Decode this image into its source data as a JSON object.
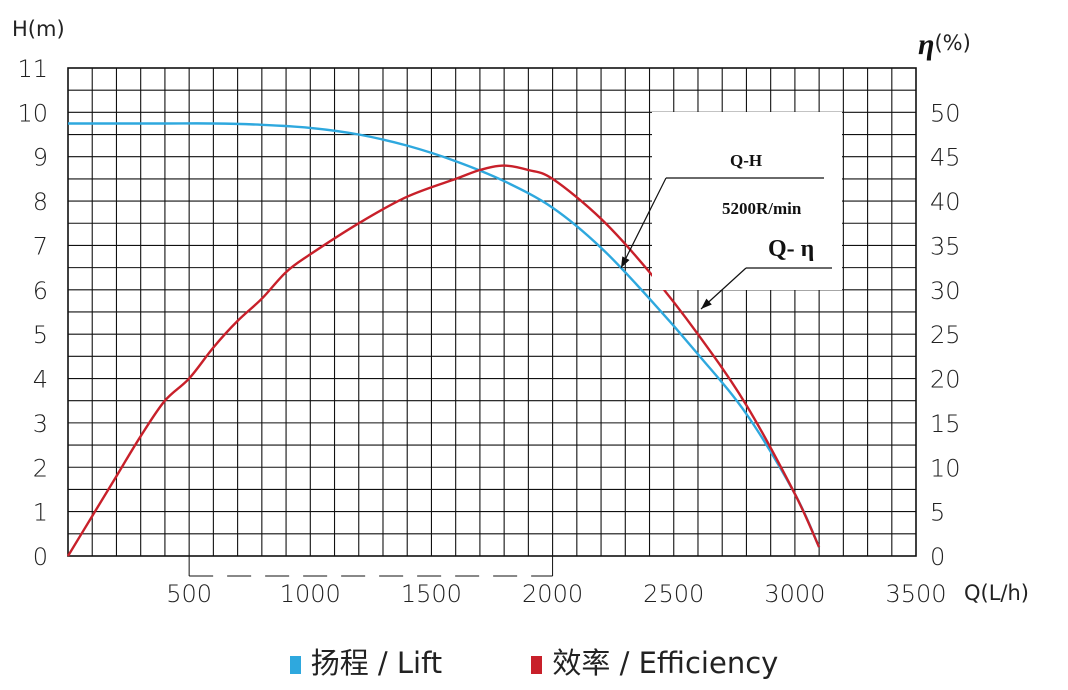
{
  "chart_data": {
    "type": "line",
    "title": "",
    "x_axis": {
      "label": "Q(L/h)",
      "range": [
        0,
        3500
      ],
      "ticks": [
        500,
        1000,
        1500,
        2000,
        2500,
        3000,
        3500
      ],
      "tick_labels": [
        "500",
        "1000",
        "1500",
        "2000",
        "2500",
        "3000",
        "3500"
      ]
    },
    "y_axis_left": {
      "label": "H(m)",
      "range": [
        0,
        11
      ],
      "ticks": [
        0,
        1,
        2,
        3,
        4,
        5,
        6,
        7,
        8,
        9,
        10,
        11
      ],
      "tick_labels": [
        "0",
        "1",
        "2",
        "3",
        "4",
        "5",
        "6",
        "7",
        "8",
        "9",
        "10",
        "11"
      ]
    },
    "y_axis_right": {
      "label_symbol": "η",
      "label_unit": "(%)",
      "range": [
        0,
        55
      ],
      "ticks": [
        0,
        5,
        10,
        15,
        20,
        25,
        30,
        35,
        40,
        45,
        50
      ],
      "tick_labels": [
        "0",
        "5",
        "10",
        "15",
        "20",
        "25",
        "30",
        "35",
        "40",
        "45",
        "50"
      ]
    },
    "grid": true,
    "legend_position": "bottom-center",
    "series": [
      {
        "name": "扬程 / Lift",
        "axis": "left",
        "color": "#2ea8de",
        "x": [
          0,
          200,
          400,
          600,
          800,
          1000,
          1200,
          1400,
          1600,
          1800,
          2000,
          2200,
          2400,
          2600,
          2800,
          3000,
          3100
        ],
        "y": [
          9.75,
          9.75,
          9.75,
          9.75,
          9.72,
          9.65,
          9.5,
          9.25,
          8.9,
          8.45,
          7.85,
          6.95,
          5.8,
          4.55,
          3.2,
          1.4,
          0.2
        ]
      },
      {
        "name": "效率 / Efficiency",
        "axis": "right",
        "color": "#c8202a",
        "x": [
          0,
          100,
          200,
          300,
          400,
          500,
          600,
          700,
          800,
          900,
          1000,
          1200,
          1400,
          1600,
          1700,
          1800,
          1900,
          2000,
          2200,
          2400,
          2600,
          2800,
          3000,
          3100
        ],
        "y": [
          0,
          4.5,
          9,
          13.5,
          17.5,
          20,
          23.5,
          26.5,
          29,
          32,
          34,
          37.5,
          40.5,
          42.5,
          43.5,
          44,
          43.5,
          42.5,
          38,
          32,
          25,
          17,
          7,
          1
        ]
      }
    ],
    "annotations": [
      {
        "text": "Q-H"
      },
      {
        "text": "5200R/min"
      },
      {
        "text": "Q- η"
      }
    ]
  }
}
